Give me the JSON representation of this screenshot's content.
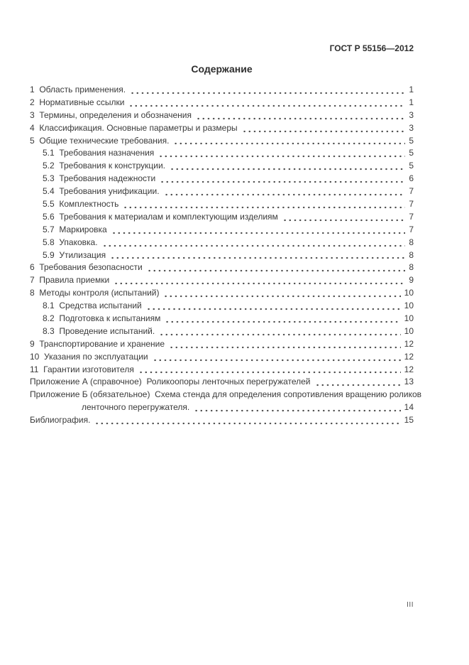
{
  "header": {
    "doc_ref": "ГОСТ Р 55156—2012"
  },
  "title": "Содержание",
  "colors": {
    "ink": "#3a3a3a",
    "background": "#ffffff"
  },
  "toc": {
    "entries": [
      {
        "text": "1  Область применения.",
        "page": "1",
        "indent": 0
      },
      {
        "text": "2  Нормативные ссылки",
        "page": "1",
        "indent": 0
      },
      {
        "text": "3  Термины, определения и обозначения",
        "page": "3",
        "indent": 0
      },
      {
        "text": "4  Классификация. Основные параметры и размеры",
        "page": "3",
        "indent": 0
      },
      {
        "text": "5  Общие технические требования.",
        "page": "5",
        "indent": 0
      },
      {
        "text": "5.1  Требования назначения",
        "page": "5",
        "indent": 1
      },
      {
        "text": "5.2  Требования к конструкции.",
        "page": "5",
        "indent": 1
      },
      {
        "text": "5.3  Требования надежности",
        "page": "6",
        "indent": 1
      },
      {
        "text": "5.4  Требования унификации.",
        "page": "7",
        "indent": 1
      },
      {
        "text": "5.5  Комплектность",
        "page": "7",
        "indent": 1
      },
      {
        "text": "5.6  Требования к материалам и комплектующим изделиям",
        "page": "7",
        "indent": 1
      },
      {
        "text": "5.7  Маркировка",
        "page": "7",
        "indent": 1
      },
      {
        "text": "5.8  Упаковка.",
        "page": "8",
        "indent": 1
      },
      {
        "text": "5.9  Утилизация",
        "page": "8",
        "indent": 1
      },
      {
        "text": "6  Требования безопасности",
        "page": "8",
        "indent": 0
      },
      {
        "text": "7  Правила приемки",
        "page": "9",
        "indent": 0
      },
      {
        "text": "8  Методы контроля (испытаний)",
        "page": "10",
        "indent": 0
      },
      {
        "text": "8.1  Средства испытаний",
        "page": "10",
        "indent": 1
      },
      {
        "text": "8.2  Подготовка к испытаниям",
        "page": "10",
        "indent": 1
      },
      {
        "text": "8.3  Проведение испытаний.",
        "page": "10",
        "indent": 1
      },
      {
        "text": "9  Транспортирование и хранение",
        "page": "12",
        "indent": 0
      },
      {
        "text": "10  Указания по эксплуатации",
        "page": "12",
        "indent": 0
      },
      {
        "text": "11  Гарантии изготовителя",
        "page": "12",
        "indent": 0
      },
      {
        "text": "Приложение А (справочное)  Роликоопоры ленточных перегружателей",
        "page": "13",
        "indent": 0
      },
      {
        "text": "Приложение Б (обязательное)  Схема стенда для определения сопротивления вращению роликов",
        "page": "",
        "indent": 0
      },
      {
        "text": "ленточного перегружателя.",
        "page": "14",
        "indent": 2
      },
      {
        "text": "Библиография.",
        "page": "15",
        "indent": 0
      }
    ]
  },
  "footer": {
    "page_number": "III"
  }
}
